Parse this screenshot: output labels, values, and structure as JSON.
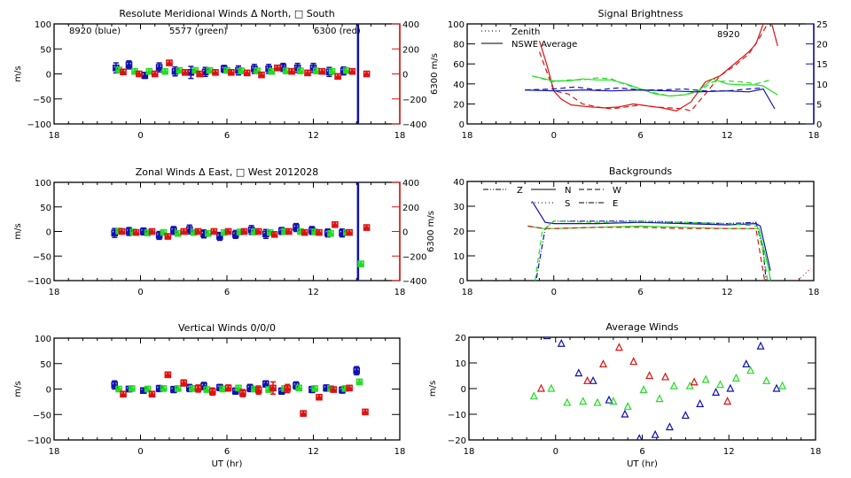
{
  "colors": {
    "blue": "#1010b0",
    "green": "#22dd22",
    "red": "#dd1111",
    "black": "#000000"
  },
  "chart_data": [
    {
      "id": "meridional",
      "type": "scatter",
      "title": "Resolute Meridional Winds Δ North, □ South",
      "xlabel": "",
      "ylabel": "m/s",
      "y2label": "6300 m/s",
      "xlim": [
        -6,
        18
      ],
      "ylim": [
        -100,
        100
      ],
      "y2lim": [
        -400,
        400
      ],
      "xtick_labels": [
        "18",
        "0",
        "6",
        "12",
        "18"
      ],
      "ytick_labels": [
        "100",
        "50",
        "0",
        "-50",
        "-100"
      ],
      "y2tick_labels": [
        "400",
        "200",
        "0",
        "-200",
        "-400"
      ],
      "annotations": [
        "8920 (blue)",
        "5577 (green)",
        "6300 (red)"
      ],
      "vline_x": 15.1,
      "series": [
        {
          "name": "8920",
          "color": "blue",
          "x": [
            -1.7,
            -0.8,
            0.3,
            1.3,
            2.4,
            3.5,
            4.5,
            5.8,
            6.8,
            7.9,
            8.9,
            9.9,
            10.9,
            12.0,
            13.1,
            14.1
          ],
          "y": [
            12,
            18,
            -3,
            13,
            5,
            3,
            4,
            10,
            7,
            10,
            10,
            13,
            12,
            12,
            4,
            6
          ],
          "err": [
            10,
            8,
            6,
            9,
            9,
            12,
            9,
            7,
            9,
            9,
            9,
            8,
            9,
            9,
            9,
            8
          ]
        },
        {
          "name": "5577",
          "color": "green",
          "x": [
            -1.5,
            -0.4,
            0.6,
            1.7,
            2.7,
            3.8,
            4.8,
            6.0,
            7.0,
            8.1,
            9.1,
            10.1,
            11.1,
            12.2,
            13.3,
            14.3
          ],
          "y": [
            8,
            5,
            5,
            5,
            7,
            7,
            7,
            7,
            6,
            6,
            5,
            6,
            6,
            6,
            5,
            7
          ]
        },
        {
          "name": "6300",
          "color": "red",
          "x": [
            -1.2,
            -0.1,
            1.0,
            2.0,
            3.1,
            4.1,
            5.2,
            6.3,
            7.4,
            8.4,
            9.5,
            10.5,
            11.6,
            12.6,
            13.7,
            14.7,
            15.7
          ],
          "y": [
            4,
            0,
            0,
            22,
            3,
            0,
            3,
            3,
            2,
            -2,
            12,
            5,
            2,
            5,
            -5,
            5,
            0
          ]
        }
      ]
    },
    {
      "id": "brightness",
      "type": "line",
      "title": "Signal Brightness",
      "xlim": [
        -6,
        18
      ],
      "ylim": [
        0,
        100
      ],
      "y2lim": [
        0,
        25
      ],
      "xtick_labels": [
        "18",
        "0",
        "6",
        "12",
        "18"
      ],
      "ytick_labels": [
        "100",
        "80",
        "60",
        "40",
        "20",
        "0"
      ],
      "y2tick_labels": [
        "25",
        "20",
        "15",
        "10",
        "5",
        "0"
      ],
      "legend": [
        "Zenith",
        "NSWE Average"
      ],
      "legend_position": "top-left",
      "annotation": "8920",
      "series": [
        {
          "name": "red NSWE",
          "color": "red",
          "style": "solid",
          "x": [
            -1.0,
            -0.5,
            0,
            0.5,
            1.2,
            2.5,
            3.5,
            4.5,
            5.5,
            6.5,
            7.5,
            8.5,
            9.5,
            10.5,
            11.5,
            12.5,
            13.5,
            14.0,
            14.5,
            15.0,
            15.5
          ],
          "y": [
            83,
            60,
            33,
            25,
            19,
            17,
            16,
            17,
            20,
            18,
            16,
            13,
            22,
            42,
            48,
            60,
            72,
            80,
            100,
            105,
            78
          ]
        },
        {
          "name": "red Zenith",
          "color": "red",
          "style": "dashed",
          "x": [
            -1.0,
            0,
            1.0,
            2.0,
            3.0,
            4.0,
            5.0,
            6.0,
            7.0,
            8.0,
            9.0,
            9.5,
            10.5,
            11.5,
            12.5,
            13.5,
            14.2,
            14.8
          ],
          "y": [
            72,
            33,
            30,
            20,
            17,
            15,
            17,
            19,
            17,
            16,
            15,
            13,
            30,
            48,
            58,
            70,
            85,
            100
          ]
        },
        {
          "name": "green NSWE",
          "color": "green",
          "style": "solid",
          "x": [
            -1.5,
            0,
            1.0,
            2.0,
            3.0,
            4.0,
            5.0,
            6.0,
            7.0,
            8.0,
            9.0,
            10.0,
            11.0,
            12.0,
            13.0,
            14.0,
            14.5,
            15.5
          ],
          "y": [
            48,
            43,
            43,
            45,
            44,
            44,
            40,
            35,
            30,
            28,
            29,
            33,
            45,
            40,
            39,
            39,
            38,
            29
          ]
        },
        {
          "name": "green Zenith",
          "color": "green",
          "style": "dashed",
          "x": [
            -1.5,
            0,
            1.0,
            2.0,
            3.0,
            4.0,
            5.0,
            6.0,
            7.0,
            8.0,
            9.0,
            10.0,
            11.0,
            12.0,
            13.0,
            14.0,
            15.0
          ],
          "y": [
            48,
            42,
            44,
            44,
            46,
            45,
            39,
            35,
            31,
            28,
            29,
            32,
            42,
            43,
            42,
            40,
            44
          ]
        },
        {
          "name": "blue NSWE",
          "color": "blue",
          "style": "solid",
          "x": [
            -2.0,
            0,
            2.0,
            4.0,
            6.0,
            8.0,
            10.0,
            12.0,
            13.5,
            14.5,
            15.3
          ],
          "y": [
            34,
            33,
            34,
            33,
            34,
            33,
            32,
            33,
            32,
            35,
            15
          ]
        },
        {
          "name": "blue Zenith",
          "color": "blue",
          "style": "dashed",
          "x": [
            -2.0,
            0,
            1.5,
            3.0,
            4.5,
            6.0,
            7.5,
            9.0,
            10.5,
            12.0,
            13.5,
            14.5
          ],
          "y": [
            34,
            35,
            37,
            34,
            36,
            34,
            34,
            35,
            33,
            33,
            35,
            36
          ]
        }
      ]
    },
    {
      "id": "zonal",
      "type": "scatter",
      "title": "Zonal Winds Δ East, □ West 2012028",
      "ylabel": "m/s",
      "y2label": "6300 m/s",
      "xlim": [
        -6,
        18
      ],
      "ylim": [
        -100,
        100
      ],
      "y2lim": [
        -400,
        400
      ],
      "xtick_labels": [
        "18",
        "0",
        "6",
        "12",
        "18"
      ],
      "ytick_labels": [
        "100",
        "50",
        "0",
        "-50",
        "-100"
      ],
      "y2tick_labels": [
        "400",
        "200",
        "0",
        "-200",
        "-400"
      ],
      "vline_x": 15.1,
      "series": [
        {
          "name": "8920",
          "color": "blue",
          "x": [
            -1.8,
            -0.8,
            0.2,
            1.3,
            2.3,
            3.4,
            4.4,
            5.5,
            6.6,
            7.7,
            8.7,
            9.8,
            10.8,
            11.9,
            13.0,
            14.0
          ],
          "y": [
            -3,
            0,
            0,
            -8,
            2,
            4,
            -5,
            -10,
            -6,
            3,
            -5,
            1,
            8,
            2,
            -3,
            -3
          ],
          "err": [
            9,
            8,
            7,
            8,
            8,
            9,
            8,
            8,
            8,
            9,
            9,
            7,
            8,
            8,
            8,
            8
          ]
        },
        {
          "name": "5577",
          "color": "green",
          "x": [
            -1.5,
            -0.5,
            0.5,
            1.6,
            2.6,
            3.7,
            4.7,
            5.8,
            6.9,
            7.9,
            9.0,
            10.0,
            11.1,
            12.1,
            13.2,
            14.3,
            15.3
          ],
          "y": [
            1,
            -1,
            -3,
            -2,
            -4,
            -2,
            -4,
            -2,
            -1,
            -1,
            -2,
            0,
            0,
            -1,
            -4,
            -2,
            -66
          ]
        },
        {
          "name": "6300",
          "color": "red",
          "x": [
            -1.3,
            -0.3,
            0.8,
            1.9,
            3.0,
            4.0,
            5.1,
            6.1,
            7.2,
            8.2,
            9.3,
            10.3,
            11.4,
            12.4,
            13.5,
            14.5,
            15.7
          ],
          "y": [
            0,
            -2,
            0,
            -10,
            0,
            0,
            0,
            0,
            0,
            0,
            -6,
            0,
            -2,
            -2,
            14,
            -2,
            8
          ]
        }
      ]
    },
    {
      "id": "backgrounds",
      "type": "line",
      "title": "Backgrounds",
      "xlim": [
        -6,
        18
      ],
      "ylim": [
        0,
        40
      ],
      "xtick_labels": [
        "18",
        "0",
        "6",
        "12",
        "18"
      ],
      "ytick_labels": [
        "40",
        "30",
        "20",
        "10",
        "0"
      ],
      "legend": [
        "Z",
        "N",
        "W",
        "S",
        "E"
      ],
      "legend_position": "top-left",
      "series": [
        {
          "name": "blue N",
          "color": "blue",
          "style": "solid",
          "x": [
            -1.5,
            -0.6,
            0,
            3,
            6,
            9,
            12,
            14.0,
            14.3,
            15.0
          ],
          "y": [
            32,
            23.5,
            23,
            23,
            23.5,
            23,
            22.5,
            23,
            22,
            4
          ]
        },
        {
          "name": "blue Z",
          "color": "blue",
          "style": "dashdot",
          "x": [
            -1.2,
            -0.6,
            0,
            3,
            6,
            9,
            12,
            14.0,
            14.5,
            14.7
          ],
          "y": [
            1,
            21,
            24,
            24,
            24,
            23.5,
            23,
            23.5,
            12,
            0
          ]
        },
        {
          "name": "green W",
          "color": "green",
          "style": "dashed",
          "x": [
            -1.3,
            -0.8,
            0,
            3,
            6,
            9,
            12,
            14.1,
            14.6,
            14.8
          ],
          "y": [
            0,
            20,
            24,
            23.5,
            24,
            23.5,
            23,
            22,
            8,
            0
          ]
        },
        {
          "name": "green E",
          "color": "green",
          "style": "solid",
          "x": [
            -1.8,
            -0.8,
            0,
            3,
            6,
            9,
            12,
            14.2,
            14.9,
            15.0
          ],
          "y": [
            22,
            21,
            21,
            21.5,
            22,
            21.5,
            21,
            21,
            4,
            0
          ]
        },
        {
          "name": "red",
          "color": "red",
          "style": "dashed",
          "x": [
            -1.8,
            -0.6,
            0,
            3,
            6,
            9,
            12,
            14.0,
            14.6
          ],
          "y": [
            22,
            21,
            21,
            21.5,
            21.5,
            21,
            21,
            21,
            0
          ]
        },
        {
          "name": "red tail",
          "color": "red",
          "style": "dotted",
          "x": [
            16.9,
            17.8
          ],
          "y": [
            0,
            5
          ]
        }
      ]
    },
    {
      "id": "vertical",
      "type": "scatter",
      "title": "Vertical Winds 0/0/0",
      "xlabel": "UT (hr)",
      "ylabel": "m/s",
      "xlim": [
        -6,
        18
      ],
      "ylim": [
        -100,
        100
      ],
      "xtick_labels": [
        "18",
        "0",
        "6",
        "12",
        "18"
      ],
      "ytick_labels": [
        "100",
        "50",
        "0",
        "-50",
        "-100"
      ],
      "series": [
        {
          "name": "8920",
          "color": "blue",
          "x": [
            -1.8,
            -0.8,
            0.2,
            1.3,
            2.3,
            3.4,
            4.4,
            5.5,
            6.6,
            7.6,
            8.7,
            9.8,
            10.8,
            11.9,
            12.9,
            14.0,
            15.0
          ],
          "y": [
            8,
            0,
            -3,
            1,
            -1,
            2,
            6,
            3,
            -4,
            2,
            10,
            -4,
            7,
            -1,
            2,
            -2,
            36
          ],
          "err": [
            8,
            5,
            5,
            6,
            6,
            7,
            7,
            6,
            6,
            7,
            6,
            6,
            7,
            6,
            6,
            6,
            8
          ]
        },
        {
          "name": "5577",
          "color": "green",
          "x": [
            -1.5,
            -0.6,
            0.5,
            1.6,
            2.6,
            3.6,
            4.6,
            5.7,
            6.8,
            7.9,
            8.9,
            10.0,
            11.0,
            12.1,
            13.2,
            14.2,
            15.2
          ],
          "y": [
            0,
            1,
            0,
            1,
            1,
            1,
            -1,
            0,
            2,
            0,
            -1,
            1,
            2,
            1,
            1,
            1,
            14
          ]
        },
        {
          "name": "6300",
          "color": "red",
          "x": [
            -1.2,
            0.8,
            1.9,
            3.0,
            4.0,
            5.0,
            6.1,
            7.1,
            8.2,
            9.2,
            10.2,
            11.3,
            12.4,
            13.4,
            14.5,
            15.6
          ],
          "y": [
            -10,
            -10,
            28,
            12,
            1,
            -5,
            2,
            -8,
            -2,
            2,
            1,
            -48,
            -16,
            -1,
            2,
            -45
          ],
          "err": [
            0,
            0,
            5,
            6,
            7,
            7,
            6,
            7,
            8,
            12,
            8,
            0,
            0,
            0,
            0,
            0
          ]
        }
      ]
    },
    {
      "id": "average",
      "type": "scatter",
      "title": "Average Winds",
      "xlabel": "UT (hr)",
      "ylabel": "m/s",
      "xlim": [
        -6,
        18
      ],
      "ylim": [
        -20,
        20
      ],
      "xtick_labels": [
        "18",
        "0",
        "6",
        "12",
        "18"
      ],
      "ytick_labels": [
        "20",
        "10",
        "0",
        "-10",
        "-20"
      ],
      "series": [
        {
          "name": "8920",
          "color": "blue",
          "x": [
            -0.6,
            0.4,
            1.6,
            2.6,
            3.7,
            4.8,
            5.8,
            6.9,
            7.9,
            9.0,
            10.0,
            11.1,
            12.1,
            13.2,
            14.2,
            15.3
          ],
          "y": [
            20.5,
            17.5,
            6,
            3,
            -4.5,
            -10,
            -19.5,
            -18,
            -15,
            -10.5,
            -6,
            -1.5,
            0,
            9.5,
            16.5,
            0
          ]
        },
        {
          "name": "5577",
          "color": "green",
          "x": [
            -1.5,
            -0.3,
            0.8,
            1.9,
            2.9,
            4.0,
            5.0,
            6.1,
            7.2,
            8.2,
            9.3,
            10.4,
            11.4,
            12.5,
            13.5,
            14.6,
            15.7
          ],
          "y": [
            -3,
            0,
            -5.5,
            -5,
            -5.5,
            -5,
            -7,
            -0.5,
            -4,
            1,
            1,
            3.5,
            1.5,
            4,
            7,
            3,
            1
          ]
        },
        {
          "name": "6300",
          "color": "red",
          "x": [
            -1.0,
            2.2,
            3.3,
            4.4,
            5.4,
            6.5,
            7.6,
            9.6,
            11.9
          ],
          "y": [
            0,
            3,
            9.5,
            16,
            10.5,
            5,
            4.5,
            2.5,
            -5
          ]
        }
      ]
    }
  ]
}
